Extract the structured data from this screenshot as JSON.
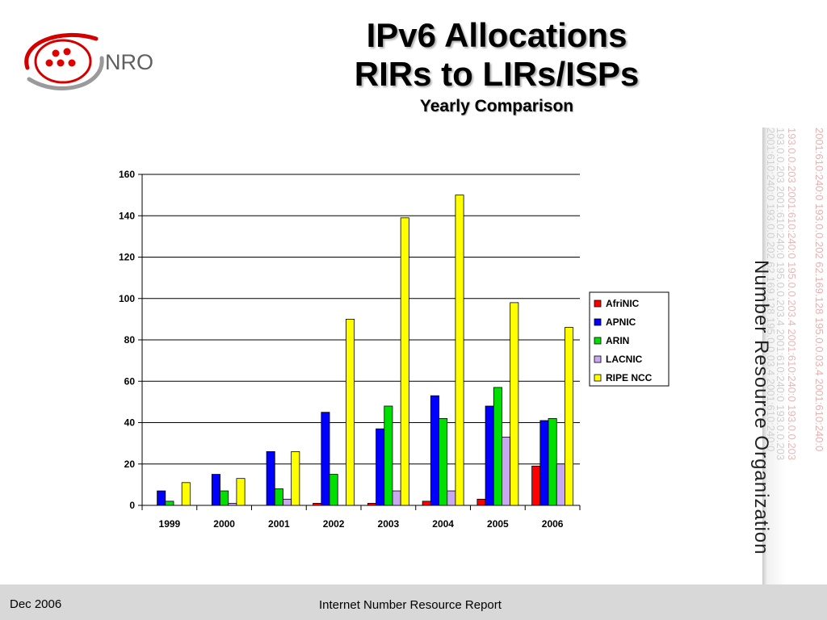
{
  "logo": {
    "text": "NRO"
  },
  "header": {
    "title_line1": "IPv6 Allocations",
    "title_line2": "RIRs to LIRs/ISPs",
    "subtitle": "Yearly Comparison"
  },
  "sidebar": {
    "org_name": "Number Resource Organization",
    "background_strings": [
      "2001:610:240:0 193.0.0.202 62.169.128 195.0.0.03.4 2001:610:240:0",
      "193.0.0.203 2001:610:240:0 195.0.0.203.4 2001:610:240:0 193.0.0.203",
      "193.0.0.203 2001:610:240:0 195.0.0.203.4 2001:610:240:0 193.0.0.203",
      "2001:610:240:0 193.0.0.202 62.169.128 195.0.0.03.4 2001:610:240:0"
    ]
  },
  "footer": {
    "date": "Dec 2006",
    "report": "Internet Number Resource Report"
  },
  "chart_data": {
    "type": "bar",
    "categories": [
      "1999",
      "2000",
      "2001",
      "2002",
      "2003",
      "2004",
      "2005",
      "2006"
    ],
    "series": [
      {
        "name": "AfriNIC",
        "color": "#ff0000",
        "values": [
          0,
          0,
          0,
          1,
          1,
          2,
          3,
          19
        ]
      },
      {
        "name": "APNIC",
        "color": "#0000ff",
        "values": [
          7,
          15,
          26,
          45,
          37,
          53,
          48,
          41
        ]
      },
      {
        "name": "ARIN",
        "color": "#00e000",
        "values": [
          2,
          7,
          8,
          15,
          48,
          42,
          57,
          42
        ]
      },
      {
        "name": "LACNIC",
        "color": "#c8a8f0",
        "values": [
          0,
          1,
          3,
          0,
          7,
          7,
          33,
          20
        ]
      },
      {
        "name": "RIPE NCC",
        "color": "#ffff00",
        "values": [
          11,
          13,
          26,
          90,
          139,
          150,
          98,
          86
        ]
      }
    ],
    "ylim": [
      0,
      160
    ],
    "yticks": [
      0,
      20,
      40,
      60,
      80,
      100,
      120,
      140,
      160
    ],
    "grid": true,
    "legend": "right"
  }
}
